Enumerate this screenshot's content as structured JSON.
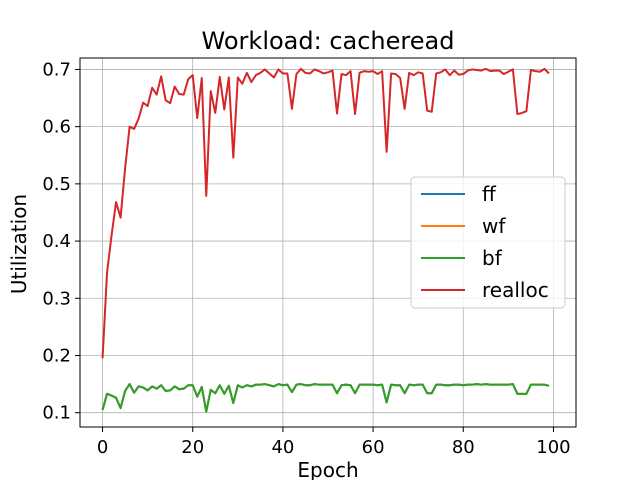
{
  "chart_data": {
    "type": "line",
    "title": "Workload: cacheread",
    "xlabel": "Epoch",
    "ylabel": "Utilization",
    "xlim": [
      -5,
      105
    ],
    "ylim": [
      0.075,
      0.72
    ],
    "xticks": [
      0,
      20,
      40,
      60,
      80,
      100
    ],
    "yticks": [
      0.1,
      0.2,
      0.3,
      0.4,
      0.5,
      0.6,
      0.7
    ],
    "grid": true,
    "legend": "center-right",
    "x": [
      0,
      1,
      2,
      3,
      4,
      5,
      6,
      7,
      8,
      9,
      10,
      11,
      12,
      13,
      14,
      15,
      16,
      17,
      18,
      19,
      20,
      21,
      22,
      23,
      24,
      25,
      26,
      27,
      28,
      29,
      30,
      31,
      32,
      33,
      34,
      35,
      36,
      37,
      38,
      39,
      40,
      41,
      42,
      43,
      44,
      45,
      46,
      47,
      48,
      49,
      50,
      51,
      52,
      53,
      54,
      55,
      56,
      57,
      58,
      59,
      60,
      61,
      62,
      63,
      64,
      65,
      66,
      67,
      68,
      69,
      70,
      71,
      72,
      73,
      74,
      75,
      76,
      77,
      78,
      79,
      80,
      81,
      82,
      83,
      84,
      85,
      86,
      87,
      88,
      89,
      90,
      91,
      92,
      93,
      94,
      95,
      96,
      97,
      98,
      99
    ],
    "series": [
      {
        "name": "ff",
        "color": "#1f77b4",
        "values": [
          0.105,
          0.133,
          0.13,
          0.126,
          0.108,
          0.138,
          0.15,
          0.135,
          0.146,
          0.144,
          0.139,
          0.146,
          0.142,
          0.148,
          0.138,
          0.139,
          0.146,
          0.141,
          0.142,
          0.148,
          0.148,
          0.128,
          0.145,
          0.102,
          0.14,
          0.134,
          0.148,
          0.133,
          0.147,
          0.117,
          0.148,
          0.144,
          0.148,
          0.146,
          0.149,
          0.149,
          0.15,
          0.148,
          0.146,
          0.15,
          0.148,
          0.149,
          0.136,
          0.149,
          0.15,
          0.148,
          0.148,
          0.15,
          0.149,
          0.149,
          0.149,
          0.149,
          0.134,
          0.148,
          0.149,
          0.148,
          0.134,
          0.149,
          0.149,
          0.149,
          0.149,
          0.148,
          0.149,
          0.118,
          0.149,
          0.148,
          0.148,
          0.134,
          0.149,
          0.148,
          0.149,
          0.149,
          0.134,
          0.134,
          0.149,
          0.149,
          0.148,
          0.148,
          0.149,
          0.149,
          0.148,
          0.149,
          0.149,
          0.15,
          0.149,
          0.15,
          0.149,
          0.149,
          0.149,
          0.149,
          0.149,
          0.15,
          0.133,
          0.133,
          0.133,
          0.149,
          0.149,
          0.149,
          0.149,
          0.147
        ]
      },
      {
        "name": "wf",
        "color": "#ff7f0e",
        "values": [
          0.105,
          0.133,
          0.13,
          0.126,
          0.108,
          0.138,
          0.15,
          0.135,
          0.146,
          0.144,
          0.139,
          0.146,
          0.142,
          0.148,
          0.138,
          0.139,
          0.146,
          0.141,
          0.142,
          0.148,
          0.148,
          0.128,
          0.145,
          0.102,
          0.14,
          0.134,
          0.148,
          0.133,
          0.147,
          0.117,
          0.148,
          0.144,
          0.148,
          0.146,
          0.149,
          0.149,
          0.15,
          0.148,
          0.146,
          0.15,
          0.148,
          0.149,
          0.136,
          0.149,
          0.15,
          0.148,
          0.148,
          0.15,
          0.149,
          0.149,
          0.149,
          0.149,
          0.134,
          0.148,
          0.149,
          0.148,
          0.134,
          0.149,
          0.149,
          0.149,
          0.149,
          0.148,
          0.149,
          0.118,
          0.149,
          0.148,
          0.148,
          0.134,
          0.149,
          0.148,
          0.149,
          0.149,
          0.134,
          0.134,
          0.149,
          0.149,
          0.148,
          0.148,
          0.149,
          0.149,
          0.148,
          0.149,
          0.149,
          0.15,
          0.149,
          0.15,
          0.149,
          0.149,
          0.149,
          0.149,
          0.149,
          0.15,
          0.133,
          0.133,
          0.133,
          0.149,
          0.149,
          0.149,
          0.149,
          0.147
        ]
      },
      {
        "name": "bf",
        "color": "#2ca02c",
        "values": [
          0.105,
          0.133,
          0.13,
          0.126,
          0.108,
          0.138,
          0.15,
          0.135,
          0.146,
          0.144,
          0.139,
          0.146,
          0.142,
          0.148,
          0.138,
          0.139,
          0.146,
          0.141,
          0.142,
          0.148,
          0.148,
          0.128,
          0.145,
          0.102,
          0.14,
          0.134,
          0.148,
          0.133,
          0.147,
          0.117,
          0.148,
          0.144,
          0.148,
          0.146,
          0.149,
          0.149,
          0.15,
          0.148,
          0.146,
          0.15,
          0.148,
          0.149,
          0.136,
          0.149,
          0.15,
          0.148,
          0.148,
          0.15,
          0.149,
          0.149,
          0.149,
          0.149,
          0.134,
          0.148,
          0.149,
          0.148,
          0.134,
          0.149,
          0.149,
          0.149,
          0.149,
          0.148,
          0.149,
          0.118,
          0.149,
          0.148,
          0.148,
          0.134,
          0.149,
          0.148,
          0.149,
          0.149,
          0.134,
          0.134,
          0.149,
          0.149,
          0.148,
          0.148,
          0.149,
          0.149,
          0.148,
          0.149,
          0.149,
          0.15,
          0.149,
          0.15,
          0.149,
          0.149,
          0.149,
          0.149,
          0.149,
          0.15,
          0.133,
          0.133,
          0.133,
          0.149,
          0.149,
          0.149,
          0.149,
          0.147
        ]
      },
      {
        "name": "realloc",
        "color": "#d62728",
        "values": [
          0.195,
          0.345,
          0.41,
          0.468,
          0.441,
          0.527,
          0.6,
          0.596,
          0.614,
          0.642,
          0.636,
          0.668,
          0.656,
          0.688,
          0.646,
          0.641,
          0.67,
          0.657,
          0.656,
          0.683,
          0.69,
          0.615,
          0.685,
          0.479,
          0.662,
          0.624,
          0.687,
          0.63,
          0.686,
          0.546,
          0.686,
          0.675,
          0.694,
          0.678,
          0.69,
          0.694,
          0.7,
          0.693,
          0.686,
          0.7,
          0.693,
          0.693,
          0.631,
          0.692,
          0.701,
          0.694,
          0.693,
          0.7,
          0.697,
          0.693,
          0.695,
          0.698,
          0.623,
          0.692,
          0.69,
          0.697,
          0.622,
          0.694,
          0.697,
          0.696,
          0.697,
          0.692,
          0.697,
          0.556,
          0.693,
          0.692,
          0.685,
          0.631,
          0.694,
          0.69,
          0.695,
          0.693,
          0.628,
          0.626,
          0.693,
          0.695,
          0.7,
          0.69,
          0.698,
          0.691,
          0.692,
          0.698,
          0.7,
          0.699,
          0.698,
          0.701,
          0.697,
          0.698,
          0.698,
          0.692,
          0.696,
          0.7,
          0.622,
          0.624,
          0.627,
          0.699,
          0.697,
          0.696,
          0.701,
          0.693
        ]
      }
    ]
  }
}
